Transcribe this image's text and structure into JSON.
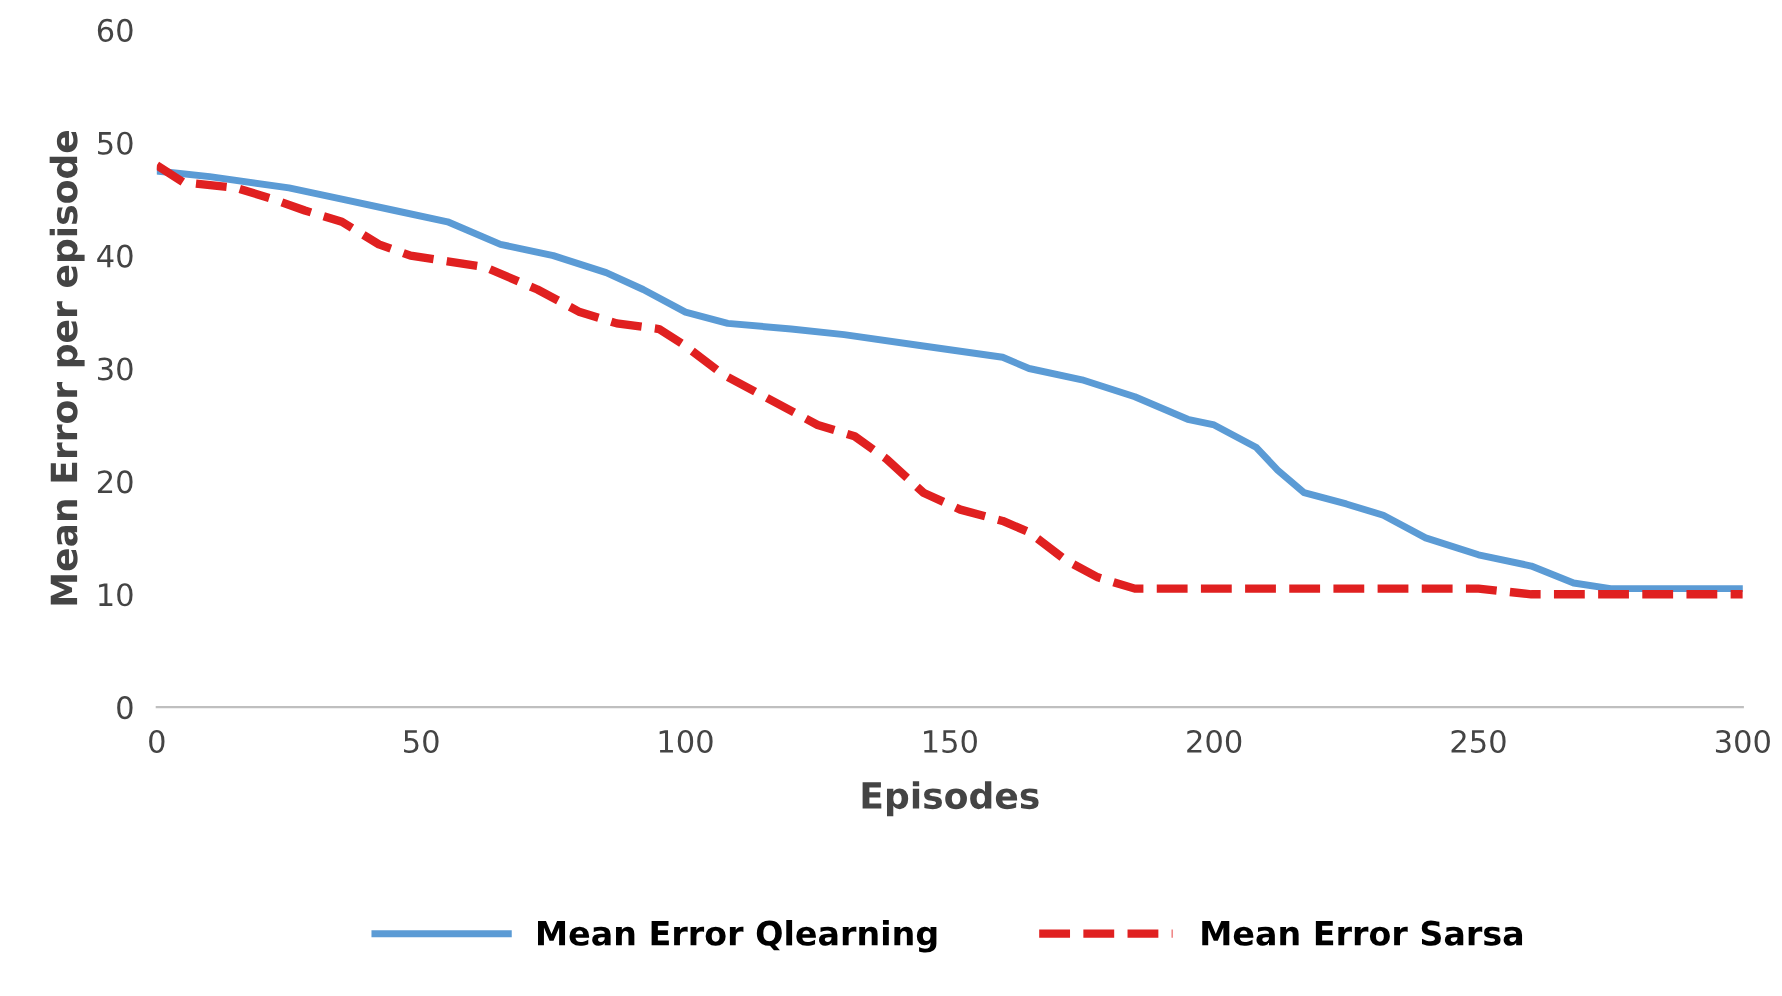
{
  "chart_data": {
    "type": "line",
    "xlabel": "Episodes",
    "ylabel": "Mean Error per episode",
    "xlim": [
      0,
      300
    ],
    "ylim": [
      0,
      60
    ],
    "xticks": [
      0,
      50,
      100,
      150,
      200,
      250,
      300
    ],
    "yticks": [
      0,
      10,
      20,
      30,
      40,
      50,
      60
    ],
    "grid": false,
    "legend": "bottom",
    "series": [
      {
        "name": "Mean Error Qlearning",
        "color": "#5b9bd5",
        "line_style": "solid",
        "x": [
          0,
          10,
          25,
          35,
          45,
          55,
          65,
          75,
          85,
          92,
          100,
          108,
          120,
          130,
          145,
          160,
          165,
          175,
          185,
          195,
          200,
          208,
          212,
          217,
          225,
          232,
          240,
          250,
          260,
          268,
          275,
          300
        ],
        "values": [
          47.5,
          47,
          46,
          45,
          44,
          43,
          41,
          40,
          38.5,
          37,
          35,
          34,
          33.5,
          33,
          32,
          31,
          30,
          29,
          27.5,
          25.5,
          25,
          23,
          21,
          19,
          18,
          17,
          15,
          13.5,
          12.5,
          11,
          10.5,
          10.5
        ]
      },
      {
        "name": "Mean Error Sarsa",
        "color": "#e02020",
        "line_style": "dashed",
        "x": [
          0,
          5,
          15,
          22,
          28,
          35,
          42,
          48,
          55,
          62,
          72,
          80,
          87,
          95,
          100,
          107,
          115,
          125,
          132,
          138,
          145,
          152,
          160,
          165,
          172,
          178,
          185,
          200,
          250,
          260,
          300
        ],
        "values": [
          48,
          46.5,
          46,
          45,
          44,
          43,
          41,
          40,
          39.5,
          39,
          37,
          35,
          34,
          33.5,
          32,
          29.5,
          27.5,
          25,
          24,
          22,
          19,
          17.5,
          16.5,
          15.5,
          13,
          11.5,
          10.5,
          10.5,
          10.5,
          10,
          10
        ]
      }
    ]
  }
}
